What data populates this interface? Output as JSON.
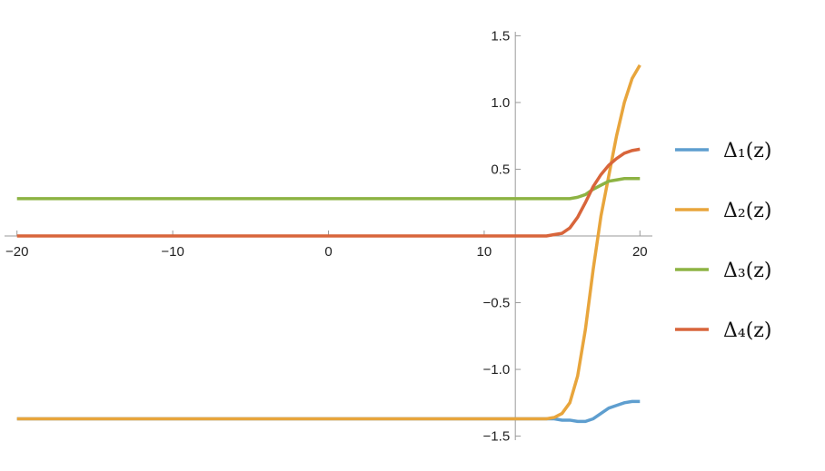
{
  "chart_data": {
    "type": "line",
    "x": [
      -20,
      10,
      13,
      14,
      14.5,
      15,
      15.5,
      16,
      16.5,
      17,
      17.5,
      18,
      18.5,
      19,
      19.5,
      20
    ],
    "series": [
      {
        "name": "Δ₁(z)",
        "color": "#5e9ecf",
        "values": [
          -1.37,
          -1.37,
          -1.37,
          -1.37,
          -1.37,
          -1.38,
          -1.38,
          -1.39,
          -1.39,
          -1.37,
          -1.33,
          -1.29,
          -1.27,
          -1.25,
          -1.24,
          -1.24
        ]
      },
      {
        "name": "Δ₂(z)",
        "color": "#e8a53c",
        "values": [
          -1.37,
          -1.37,
          -1.37,
          -1.37,
          -1.36,
          -1.33,
          -1.25,
          -1.05,
          -0.7,
          -0.25,
          0.15,
          0.45,
          0.75,
          1.0,
          1.18,
          1.28
        ]
      },
      {
        "name": "Δ₃(z)",
        "color": "#8db343",
        "values": [
          0.28,
          0.28,
          0.28,
          0.28,
          0.28,
          0.28,
          0.28,
          0.29,
          0.31,
          0.35,
          0.38,
          0.41,
          0.42,
          0.43,
          0.43,
          0.43
        ]
      },
      {
        "name": "Δ₄(z)",
        "color": "#d8653b",
        "values": [
          0,
          0,
          0,
          0,
          0.01,
          0.02,
          0.06,
          0.14,
          0.25,
          0.37,
          0.46,
          0.53,
          0.58,
          0.62,
          0.64,
          0.65
        ]
      }
    ],
    "xlim": [
      -20.8,
      20.8
    ],
    "ylim": [
      -1.53,
      1.53
    ],
    "y_axis_at": 12,
    "xticks": [
      {
        "value": -20,
        "label": "−20"
      },
      {
        "value": -10,
        "label": "−10"
      },
      0,
      10,
      20
    ],
    "yticks": [
      {
        "value": -1.5,
        "label": "−1.5"
      },
      {
        "value": -1,
        "label": "−1.0"
      },
      {
        "value": -0.5,
        "label": "−0.5"
      },
      0.5,
      {
        "value": 1,
        "label": "1.0"
      },
      1.5
    ],
    "legend": "right"
  }
}
